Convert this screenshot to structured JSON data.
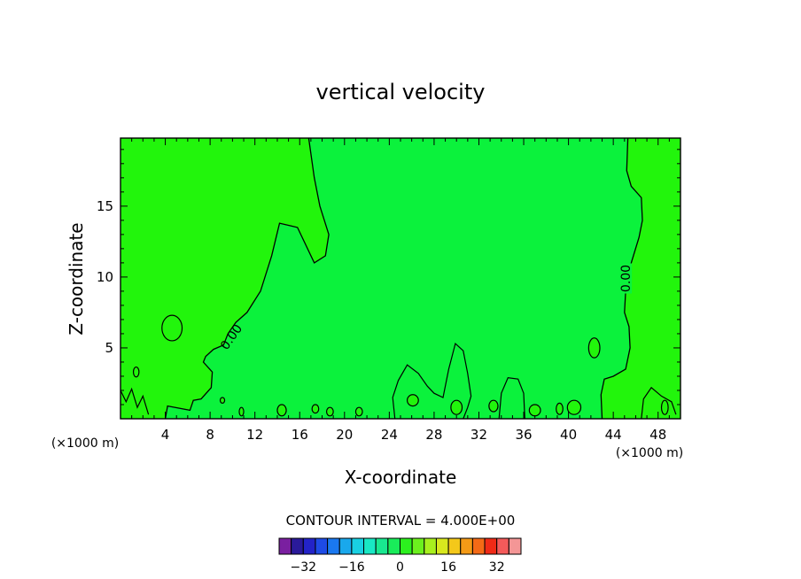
{
  "chart_data": {
    "type": "contour",
    "title": "vertical velocity",
    "xlabel": "X-coordinate",
    "ylabel": "Z-coordinate",
    "x_unit": "(×1000 m)",
    "xlim": [
      0,
      50
    ],
    "ylim": [
      0,
      19.8
    ],
    "xticks": [
      4,
      8,
      12,
      16,
      20,
      24,
      28,
      32,
      36,
      40,
      44,
      48
    ],
    "yticks": [
      5,
      10,
      15
    ],
    "contour_interval_label": "CONTOUR INTERVAL = 4.000E+00",
    "contour_line_labels": [
      "0.00",
      "0.00"
    ],
    "zero_contour": {
      "left": [
        [
          16.8,
          19.8
        ],
        [
          17.3,
          17
        ],
        [
          17.8,
          15
        ],
        [
          18.6,
          13
        ],
        [
          18.3,
          11.5
        ],
        [
          17.3,
          11
        ],
        [
          16.4,
          12.5
        ],
        [
          15.8,
          13.5
        ],
        [
          14.2,
          13.8
        ],
        [
          13.5,
          11.5
        ],
        [
          12.5,
          9
        ],
        [
          11.3,
          7.5
        ],
        [
          10.3,
          6.8
        ],
        [
          9.6,
          6
        ],
        [
          9.2,
          5.2
        ],
        [
          8.3,
          4.9
        ],
        [
          7.6,
          4.4
        ],
        [
          7.4,
          4
        ],
        [
          8.2,
          3.3
        ],
        [
          8.1,
          2.2
        ],
        [
          7.2,
          1.4
        ],
        [
          6.5,
          1.3
        ],
        [
          6.2,
          0.6
        ],
        [
          4.2,
          0.9
        ],
        [
          4,
          0
        ]
      ],
      "right": [
        [
          45.3,
          19.8
        ],
        [
          45.2,
          17.5
        ],
        [
          45.6,
          16.4
        ],
        [
          46.5,
          15.6
        ],
        [
          46.6,
          14
        ],
        [
          46.3,
          12.8
        ],
        [
          45.6,
          11
        ],
        [
          45.1,
          9
        ],
        [
          45,
          7.5
        ],
        [
          45.4,
          6.5
        ],
        [
          45.5,
          5
        ],
        [
          45.1,
          3.5
        ],
        [
          44,
          3
        ],
        [
          43.2,
          2.8
        ],
        [
          42.9,
          1.7
        ],
        [
          43,
          0
        ]
      ]
    },
    "colorbar": {
      "tick_labels": [
        "-32",
        "-16",
        "0",
        "16",
        "32"
      ],
      "tick_values": [
        -32,
        -16,
        0,
        16,
        32
      ],
      "levels": [
        -36,
        -32,
        -28,
        -24,
        -20,
        -16,
        -12,
        -8,
        -4,
        0,
        4,
        8,
        12,
        16,
        20,
        24,
        28,
        32,
        36
      ],
      "colors": [
        "#7a1fa0",
        "#2a1a9a",
        "#2323c8",
        "#1e4be6",
        "#1a78f0",
        "#19a8ec",
        "#19d0e2",
        "#19e8c4",
        "#19e890",
        "#19ec5a",
        "#2cf01e",
        "#6cf01e",
        "#a8f01e",
        "#d8e81e",
        "#f4c81a",
        "#f49a16",
        "#f46a16",
        "#f02a16",
        "#f45a5a",
        "#f49696"
      ]
    },
    "fill_colors": {
      "positive": "#22f50c",
      "near_zero": "#0bf23c"
    }
  }
}
